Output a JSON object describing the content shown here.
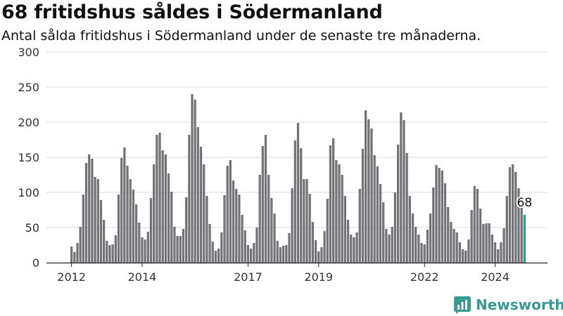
{
  "header": {
    "title": "68 fritidshus såldes i Södermanland",
    "subtitle": "Antal sålda fritidshus i Södermanland under de senaste tre månaderna."
  },
  "brand": {
    "name": "Newsworthy"
  },
  "colors": {
    "bar": "#737277",
    "highlight": "#2a9d8f",
    "grid": "#d9d9d9",
    "axis": "#222222",
    "brand": "#3a9a92"
  },
  "chart_data": {
    "type": "bar",
    "title": "68 fritidshus såldes i Södermanland",
    "subtitle": "Antal sålda fritidshus i Södermanland under de senaste tre månaderna.",
    "xlabel": "",
    "ylabel": "",
    "ylim": [
      0,
      300
    ],
    "yticks": [
      0,
      50,
      100,
      150,
      200,
      250,
      300
    ],
    "xticks": [
      "2012",
      "2014",
      "2017",
      "2019",
      "2022",
      "2024"
    ],
    "grid": true,
    "x_start": "2012-01",
    "frequency": "monthly",
    "values": [
      23,
      15,
      28,
      51,
      97,
      142,
      154,
      148,
      122,
      119,
      89,
      61,
      31,
      25,
      26,
      39,
      97,
      149,
      164,
      138,
      119,
      104,
      83,
      57,
      36,
      33,
      44,
      92,
      140,
      182,
      185,
      160,
      154,
      127,
      101,
      51,
      38,
      38,
      48,
      93,
      182,
      240,
      232,
      193,
      165,
      140,
      95,
      55,
      30,
      17,
      20,
      43,
      96,
      138,
      146,
      117,
      105,
      97,
      68,
      46,
      25,
      20,
      28,
      50,
      125,
      166,
      182,
      125,
      92,
      70,
      31,
      22,
      24,
      25,
      42,
      106,
      174,
      199,
      163,
      119,
      119,
      98,
      58,
      32,
      16,
      22,
      45,
      91,
      167,
      177,
      146,
      140,
      125,
      95,
      61,
      40,
      36,
      43,
      105,
      162,
      217,
      204,
      191,
      153,
      137,
      112,
      86,
      48,
      40,
      51,
      100,
      168,
      214,
      203,
      156,
      95,
      70,
      51,
      40,
      28,
      26,
      47,
      70,
      107,
      139,
      135,
      131,
      113,
      79,
      58,
      48,
      43,
      29,
      19,
      17,
      33,
      75,
      109,
      105,
      77,
      55,
      56,
      56,
      40,
      29,
      19,
      29,
      49,
      95,
      136,
      140,
      129,
      106,
      82,
      68
    ],
    "highlight_last": true,
    "annotation": {
      "label": "68",
      "value": 68
    }
  }
}
